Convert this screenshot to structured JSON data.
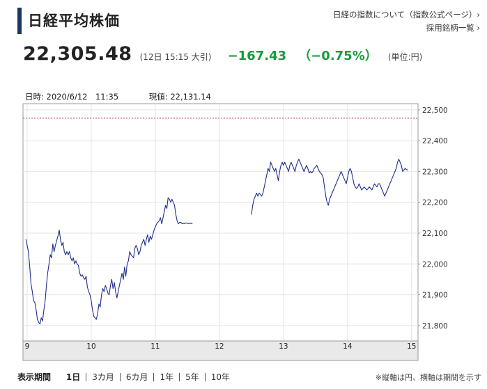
{
  "header": {
    "title": "日経平均株価",
    "link1": "日経の指数について（指数公式ページ）›",
    "link2": "採用銘柄一覧 ›"
  },
  "quote": {
    "price": "22,305.48",
    "time": "(12日 15:15 大引)",
    "change": "−167.43",
    "change_pct": "（−0.75%）",
    "unit": "(単位:円)"
  },
  "chart_header": {
    "datetime": "日時: 2020/6/12　11:35",
    "current": "現値: 22,131.14"
  },
  "colors": {
    "line": "#1f2d8c",
    "refline": "#c0392b",
    "up_down": "#1a9a3a",
    "accent_bar": "#1a3a5c"
  },
  "chart_data": {
    "type": "line",
    "title": "",
    "xlabel": "",
    "ylabel": "",
    "ylim": [
      21750,
      22520
    ],
    "xlim": [
      9,
      15.1
    ],
    "y_ticks": [
      21800,
      21900,
      22000,
      22100,
      22200,
      22300,
      22400,
      22500
    ],
    "y_tick_labels": [
      "21,800",
      "21,900",
      "22,000",
      "22,100",
      "22,200",
      "22,300",
      "22,400",
      "22,500"
    ],
    "x_ticks": [
      9,
      10,
      11,
      12,
      13,
      14,
      15
    ],
    "x_tick_labels": [
      "9",
      "10",
      "11",
      "12",
      "13",
      "14",
      "15"
    ],
    "reference_line": 22472.91,
    "grid": true,
    "series": [
      {
        "segments": [
          [
            [
              8.98,
              22080
            ],
            [
              9.02,
              22040
            ],
            [
              9.04,
              21990
            ],
            [
              9.06,
              21935
            ],
            [
              9.08,
              21910
            ],
            [
              9.1,
              21880
            ],
            [
              9.12,
              21875
            ],
            [
              9.14,
              21850
            ],
            [
              9.16,
              21820
            ],
            [
              9.18,
              21810
            ],
            [
              9.2,
              21805
            ],
            [
              9.22,
              21825
            ],
            [
              9.24,
              21815
            ],
            [
              9.26,
              21850
            ],
            [
              9.28,
              21880
            ],
            [
              9.3,
              21930
            ],
            [
              9.32,
              21970
            ],
            [
              9.34,
              22000
            ],
            [
              9.36,
              22030
            ],
            [
              9.38,
              22020
            ],
            [
              9.4,
              22065
            ],
            [
              9.42,
              22040
            ],
            [
              9.44,
              22060
            ],
            [
              9.46,
              22075
            ],
            [
              9.48,
              22090
            ],
            [
              9.5,
              22110
            ],
            [
              9.52,
              22080
            ],
            [
              9.54,
              22060
            ],
            [
              9.56,
              22070
            ],
            [
              9.58,
              22040
            ],
            [
              9.6,
              22030
            ],
            [
              9.62,
              22040
            ],
            [
              9.64,
              22030
            ],
            [
              9.66,
              22040
            ],
            [
              9.68,
              22020
            ],
            [
              9.7,
              22010
            ],
            [
              9.72,
              22020
            ],
            [
              9.74,
              22000
            ],
            [
              9.76,
              22010
            ],
            [
              9.78,
              22000
            ],
            [
              9.8,
              21995
            ],
            [
              9.82,
              21970
            ],
            [
              9.84,
              21960
            ],
            [
              9.86,
              21965
            ],
            [
              9.88,
              21955
            ],
            [
              9.9,
              21950
            ],
            [
              9.92,
              21960
            ],
            [
              9.94,
              21925
            ],
            [
              9.96,
              21910
            ],
            [
              9.98,
              21900
            ],
            [
              10.0,
              21880
            ],
            [
              10.02,
              21850
            ],
            [
              10.04,
              21830
            ],
            [
              10.06,
              21825
            ],
            [
              10.08,
              21820
            ],
            [
              10.1,
              21840
            ],
            [
              10.12,
              21870
            ],
            [
              10.14,
              21860
            ],
            [
              10.16,
              21900
            ],
            [
              10.18,
              21920
            ],
            [
              10.2,
              21910
            ],
            [
              10.22,
              21930
            ],
            [
              10.24,
              21920
            ],
            [
              10.26,
              21905
            ],
            [
              10.28,
              21900
            ],
            [
              10.3,
              21930
            ],
            [
              10.32,
              21950
            ],
            [
              10.34,
              21920
            ],
            [
              10.36,
              21940
            ],
            [
              10.38,
              21910
            ],
            [
              10.4,
              21890
            ],
            [
              10.42,
              21910
            ],
            [
              10.44,
              21930
            ],
            [
              10.46,
              21950
            ],
            [
              10.48,
              21970
            ],
            [
              10.5,
              21950
            ],
            [
              10.52,
              21990
            ],
            [
              10.54,
              21960
            ],
            [
              10.56,
              22000
            ],
            [
              10.58,
              22010
            ],
            [
              10.6,
              22040
            ],
            [
              10.62,
              22030
            ],
            [
              10.64,
              22025
            ],
            [
              10.66,
              22020
            ],
            [
              10.68,
              22050
            ],
            [
              10.7,
              22060
            ],
            [
              10.72,
              22050
            ],
            [
              10.74,
              22030
            ],
            [
              10.76,
              22040
            ],
            [
              10.78,
              22060
            ],
            [
              10.8,
              22070
            ],
            [
              10.82,
              22080
            ],
            [
              10.84,
              22060
            ],
            [
              10.86,
              22080
            ],
            [
              10.88,
              22095
            ],
            [
              10.9,
              22070
            ],
            [
              10.92,
              22090
            ],
            [
              10.94,
              22080
            ],
            [
              10.96,
              22095
            ],
            [
              10.98,
              22110
            ],
            [
              11.0,
              22120
            ],
            [
              11.02,
              22130
            ],
            [
              11.04,
              22135
            ],
            [
              11.06,
              22140
            ],
            [
              11.08,
              22150
            ],
            [
              11.1,
              22130
            ],
            [
              11.12,
              22150
            ],
            [
              11.14,
              22170
            ],
            [
              11.16,
              22190
            ],
            [
              11.18,
              22180
            ],
            [
              11.2,
              22215
            ],
            [
              11.22,
              22210
            ],
            [
              11.24,
              22200
            ],
            [
              11.26,
              22210
            ],
            [
              11.28,
              22200
            ],
            [
              11.3,
              22190
            ],
            [
              11.32,
              22160
            ],
            [
              11.34,
              22140
            ],
            [
              11.36,
              22130
            ],
            [
              11.38,
              22135
            ],
            [
              11.4,
              22135
            ],
            [
              11.42,
              22130
            ],
            [
              11.44,
              22132
            ],
            [
              11.46,
              22131
            ],
            [
              11.48,
              22133
            ],
            [
              11.5,
              22132
            ],
            [
              11.52,
              22131
            ],
            [
              11.54,
              22132
            ],
            [
              11.58,
              22131
            ]
          ],
          [
            [
              12.5,
              22160
            ],
            [
              12.52,
              22190
            ],
            [
              12.54,
              22210
            ],
            [
              12.56,
              22220
            ],
            [
              12.58,
              22230
            ],
            [
              12.6,
              22220
            ],
            [
              12.62,
              22230
            ],
            [
              12.64,
              22225
            ],
            [
              12.66,
              22220
            ],
            [
              12.68,
              22230
            ],
            [
              12.7,
              22250
            ],
            [
              12.72,
              22270
            ],
            [
              12.74,
              22290
            ],
            [
              12.76,
              22310
            ],
            [
              12.78,
              22300
            ],
            [
              12.8,
              22330
            ],
            [
              12.82,
              22320
            ],
            [
              12.84,
              22310
            ],
            [
              12.86,
              22300
            ],
            [
              12.88,
              22310
            ],
            [
              12.9,
              22290
            ],
            [
              12.92,
              22270
            ],
            [
              12.94,
              22300
            ],
            [
              12.96,
              22320
            ],
            [
              12.98,
              22330
            ],
            [
              13.0,
              22320
            ],
            [
              13.02,
              22330
            ],
            [
              13.04,
              22320
            ],
            [
              13.06,
              22310
            ],
            [
              13.08,
              22300
            ],
            [
              13.1,
              22320
            ],
            [
              13.12,
              22330
            ],
            [
              13.14,
              22320
            ],
            [
              13.16,
              22310
            ],
            [
              13.18,
              22300
            ],
            [
              13.2,
              22320
            ],
            [
              13.22,
              22330
            ],
            [
              13.24,
              22340
            ],
            [
              13.26,
              22330
            ],
            [
              13.28,
              22320
            ],
            [
              13.3,
              22310
            ],
            [
              13.32,
              22300
            ],
            [
              13.34,
              22310
            ],
            [
              13.36,
              22320
            ],
            [
              13.38,
              22310
            ],
            [
              13.4,
              22295
            ],
            [
              13.42,
              22300
            ],
            [
              13.44,
              22295
            ],
            [
              13.46,
              22300
            ],
            [
              13.48,
              22310
            ],
            [
              13.5,
              22315
            ],
            [
              13.52,
              22320
            ],
            [
              13.54,
              22310
            ],
            [
              13.56,
              22300
            ],
            [
              13.58,
              22295
            ],
            [
              13.6,
              22290
            ],
            [
              13.62,
              22280
            ],
            [
              13.64,
              22250
            ],
            [
              13.66,
              22220
            ],
            [
              13.68,
              22200
            ],
            [
              13.7,
              22190
            ],
            [
              13.72,
              22210
            ],
            [
              13.74,
              22220
            ],
            [
              13.76,
              22230
            ],
            [
              13.78,
              22240
            ],
            [
              13.8,
              22250
            ],
            [
              13.82,
              22260
            ],
            [
              13.84,
              22270
            ],
            [
              13.86,
              22280
            ],
            [
              13.88,
              22290
            ],
            [
              13.9,
              22300
            ],
            [
              13.92,
              22290
            ],
            [
              13.94,
              22280
            ],
            [
              13.96,
              22270
            ],
            [
              13.98,
              22260
            ],
            [
              14.0,
              22280
            ],
            [
              14.02,
              22300
            ],
            [
              14.04,
              22310
            ],
            [
              14.06,
              22300
            ],
            [
              14.08,
              22280
            ],
            [
              14.1,
              22260
            ],
            [
              14.12,
              22250
            ],
            [
              14.14,
              22245
            ],
            [
              14.16,
              22250
            ],
            [
              14.18,
              22260
            ],
            [
              14.2,
              22250
            ],
            [
              14.22,
              22240
            ],
            [
              14.24,
              22245
            ],
            [
              14.26,
              22250
            ],
            [
              14.28,
              22245
            ],
            [
              14.3,
              22240
            ],
            [
              14.32,
              22245
            ],
            [
              14.34,
              22250
            ],
            [
              14.36,
              22245
            ],
            [
              14.38,
              22240
            ],
            [
              14.4,
              22250
            ],
            [
              14.42,
              22260
            ],
            [
              14.44,
              22255
            ],
            [
              14.46,
              22250
            ],
            [
              14.48,
              22260
            ],
            [
              14.5,
              22260
            ],
            [
              14.52,
              22250
            ],
            [
              14.54,
              22240
            ],
            [
              14.56,
              22230
            ],
            [
              14.58,
              22220
            ],
            [
              14.6,
              22230
            ],
            [
              14.62,
              22240
            ],
            [
              14.64,
              22250
            ],
            [
              14.66,
              22260
            ],
            [
              14.68,
              22270
            ],
            [
              14.7,
              22280
            ],
            [
              14.72,
              22290
            ],
            [
              14.74,
              22300
            ],
            [
              14.76,
              22310
            ],
            [
              14.78,
              22330
            ],
            [
              14.8,
              22340
            ],
            [
              14.82,
              22330
            ],
            [
              14.84,
              22320
            ],
            [
              14.86,
              22300
            ],
            [
              14.88,
              22305
            ],
            [
              14.9,
              22310
            ],
            [
              14.92,
              22306
            ],
            [
              14.94,
              22305
            ]
          ]
        ]
      }
    ]
  },
  "period_selector": {
    "label": "表示期間",
    "items": [
      "1日",
      "3カ月",
      "6カ月",
      "1年",
      "5年",
      "10年"
    ],
    "active_index": 0
  },
  "note": "※縦軸は円、横軸は期間を示す"
}
